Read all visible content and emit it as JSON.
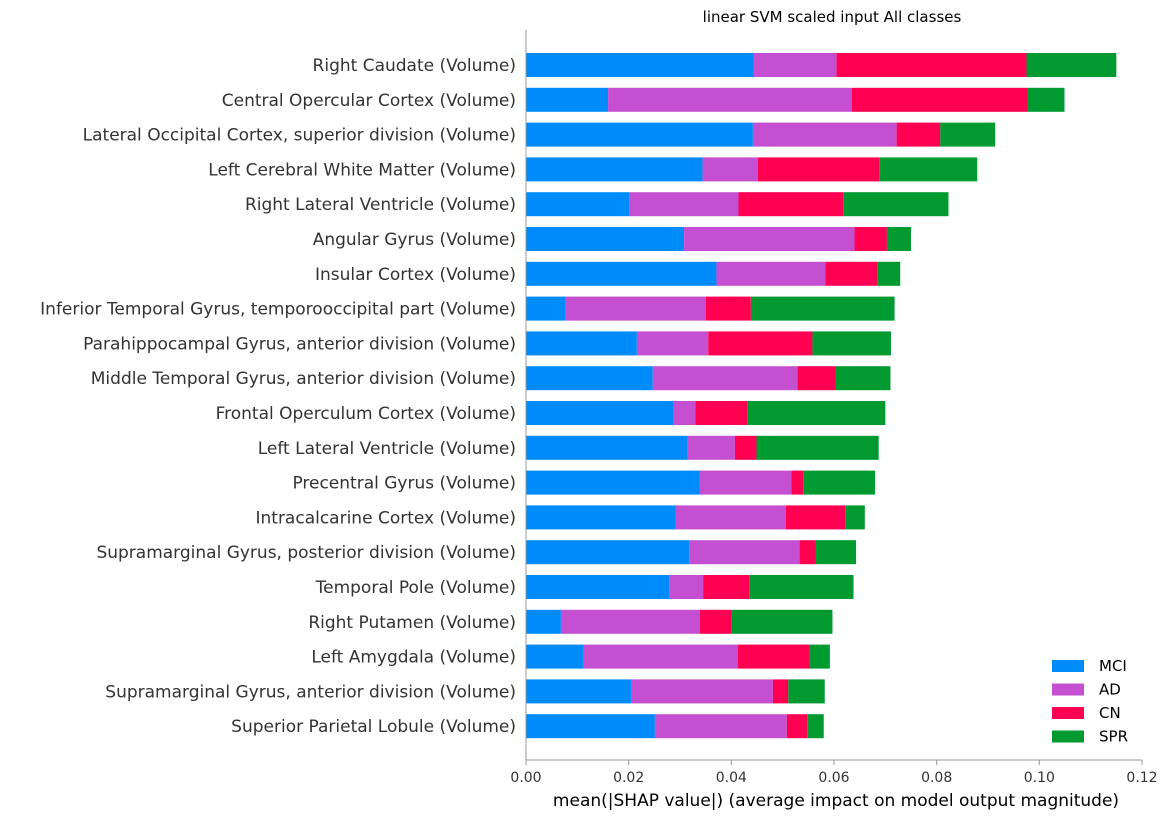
{
  "chart_data": {
    "type": "bar",
    "orientation": "horizontal",
    "stacked": true,
    "title": "linear SVM scaled input All classes",
    "xlabel": "mean(|SHAP value|) (average impact on model output magnitude)",
    "xlim": [
      0,
      0.12
    ],
    "xticks": [
      "0.00",
      "0.02",
      "0.04",
      "0.06",
      "0.08",
      "0.10",
      "0.12"
    ],
    "grid": false,
    "legend_position": "bottom-right",
    "categories": [
      "Right Caudate (Volume)",
      "Central Opercular Cortex (Volume)",
      "Lateral Occipital Cortex, superior division (Volume)",
      "Left Cerebral White Matter (Volume)",
      "Right Lateral Ventricle (Volume)",
      "Angular Gyrus (Volume)",
      "Insular Cortex (Volume)",
      "Inferior Temporal Gyrus, temporooccipital part (Volume)",
      "Parahippocampal Gyrus, anterior division (Volume)",
      "Middle Temporal Gyrus, anterior division (Volume)",
      "Frontal Operculum Cortex (Volume)",
      "Left Lateral Ventricle (Volume)",
      "Precentral Gyrus (Volume)",
      "Intracalcarine Cortex (Volume)",
      "Supramarginal Gyrus, posterior division (Volume)",
      "Temporal Pole (Volume)",
      "Right Putamen (Volume)",
      "Left Amygdala (Volume)",
      "Supramarginal Gyrus, anterior division (Volume)",
      "Superior Parietal Lobule (Volume)"
    ],
    "series": [
      {
        "name": "MCI",
        "color": "#008bfb",
        "values": [
          0.0444,
          0.016,
          0.0442,
          0.0344,
          0.0202,
          0.0308,
          0.0371,
          0.0076,
          0.0216,
          0.0247,
          0.0288,
          0.0315,
          0.0338,
          0.0292,
          0.0318,
          0.028,
          0.0068,
          0.0111,
          0.0206,
          0.0251
        ]
      },
      {
        "name": "AD",
        "color": "#c44fd0",
        "values": [
          0.0161,
          0.0475,
          0.028,
          0.0108,
          0.0212,
          0.0332,
          0.0212,
          0.0274,
          0.0139,
          0.0282,
          0.0042,
          0.0092,
          0.0179,
          0.0214,
          0.0215,
          0.0065,
          0.0271,
          0.0302,
          0.0275,
          0.0257
        ]
      },
      {
        "name": "CN",
        "color": "#ff0052",
        "values": [
          0.037,
          0.0342,
          0.0085,
          0.0236,
          0.0204,
          0.0063,
          0.0101,
          0.0088,
          0.0203,
          0.0074,
          0.0102,
          0.0042,
          0.0023,
          0.0116,
          0.003,
          0.009,
          0.0062,
          0.014,
          0.003,
          0.004
        ]
      },
      {
        "name": "SPR",
        "color": "#009a30",
        "values": [
          0.0175,
          0.0072,
          0.0107,
          0.0191,
          0.0205,
          0.0047,
          0.0045,
          0.028,
          0.0153,
          0.0107,
          0.0268,
          0.0238,
          0.014,
          0.0038,
          0.008,
          0.0203,
          0.0196,
          0.0039,
          0.0071,
          0.0032
        ]
      }
    ]
  }
}
